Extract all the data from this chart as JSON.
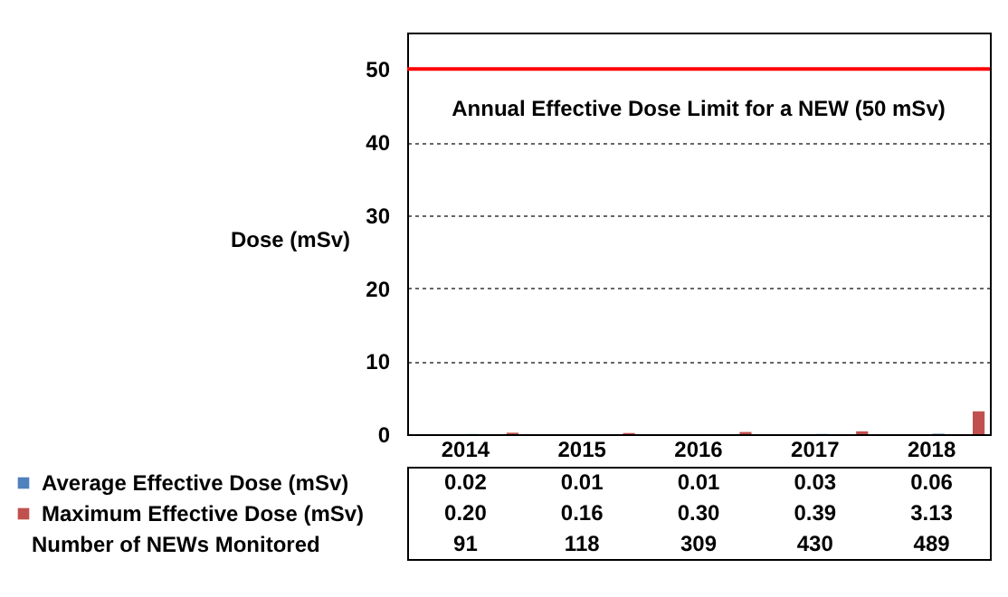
{
  "chart_data": {
    "type": "bar",
    "ylabel": "Dose (mSv)",
    "categories": [
      "2014",
      "2015",
      "2016",
      "2017",
      "2018"
    ],
    "series": [
      {
        "name": "Average Effective Dose (mSv)",
        "color": "#4f81bd",
        "values": [
          0.02,
          0.01,
          0.01,
          0.03,
          0.06
        ],
        "value_labels": [
          "0.02",
          "0.01",
          "0.01",
          "0.03",
          "0.06"
        ]
      },
      {
        "name": "Maximum Effective Dose (mSv)",
        "color": "#c0504d",
        "values": [
          0.2,
          0.16,
          0.3,
          0.39,
          3.13
        ],
        "value_labels": [
          "0.20",
          "0.16",
          "0.30",
          "0.39",
          "3.13"
        ]
      }
    ],
    "ylim": [
      0,
      55
    ],
    "yticks": [
      0,
      10,
      20,
      30,
      40,
      50
    ],
    "grid": "y",
    "legend": "bottom left",
    "ref_lines": [
      {
        "axis": "y",
        "value": 50,
        "label": "Annual Effective Dose Limit for a NEW (50 mSv)",
        "color": "#ff0000"
      }
    ],
    "annotations": [
      "Number of NEWs Monitored",
      "91",
      "118",
      "309",
      "430",
      "489"
    ]
  }
}
